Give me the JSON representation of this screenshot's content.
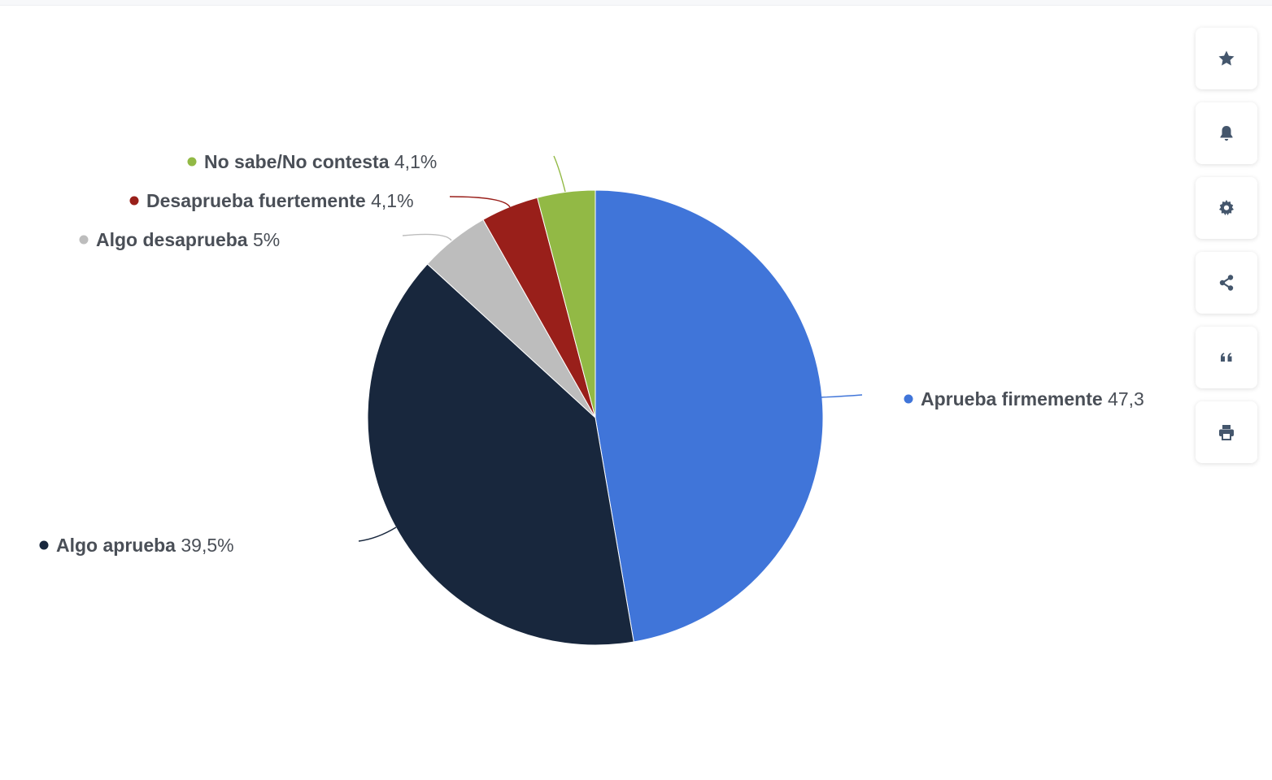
{
  "chart_data": {
    "type": "pie",
    "title": "",
    "slices": [
      {
        "label": "Aprueba firmemente",
        "value": 47.3,
        "value_text": "47,3",
        "color": "#4075d9"
      },
      {
        "label": "Algo aprueba",
        "value": 39.5,
        "value_text": "39,5%",
        "color": "#18273d"
      },
      {
        "label": "Algo desaprueba",
        "value": 5,
        "value_text": "5%",
        "color": "#bdbdbd"
      },
      {
        "label": "Desaprueba fuertemente",
        "value": 4.1,
        "value_text": "4,1%",
        "color": "#991f1a"
      },
      {
        "label": "No sabe/No contesta",
        "value": 4.1,
        "value_text": "4,1%",
        "color": "#92b945"
      }
    ],
    "legend": "none"
  },
  "toolbar": [
    {
      "icon": "star-icon",
      "action": "favorite"
    },
    {
      "icon": "bell-icon",
      "action": "notifications"
    },
    {
      "icon": "gear-icon",
      "action": "settings"
    },
    {
      "icon": "share-icon",
      "action": "share"
    },
    {
      "icon": "quote-icon",
      "action": "cite"
    },
    {
      "icon": "print-icon",
      "action": "print"
    }
  ],
  "colors": {
    "label_text": "#4a4f57",
    "toolbar_icon": "#44566c"
  }
}
